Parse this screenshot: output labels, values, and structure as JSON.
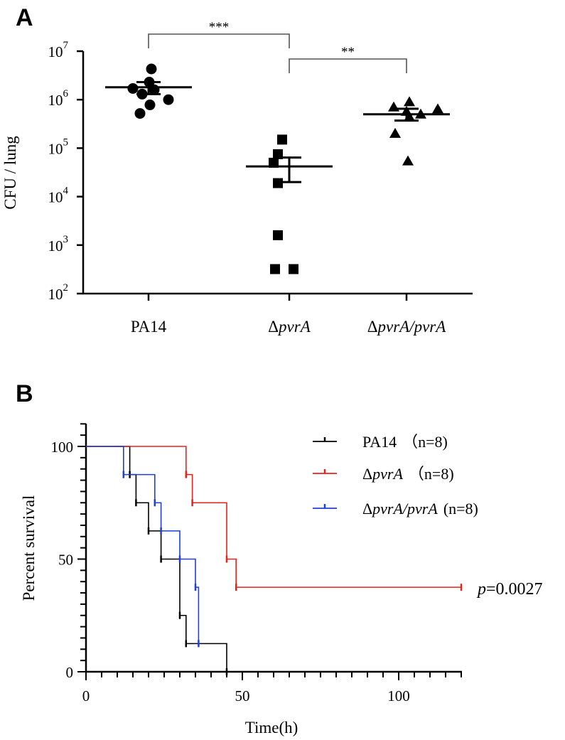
{
  "panels": {
    "a_letter": "A",
    "b_letter": "B"
  },
  "chart_data": [
    {
      "type": "scatter",
      "ylabel": "CFU / lung",
      "yscale": "log",
      "ylim": [
        100,
        10000000
      ],
      "ytick_exponents": [
        "2",
        "3",
        "4",
        "5",
        "6",
        "7"
      ],
      "ytick_base": "10",
      "categories": [
        {
          "prefix": "",
          "italic": "",
          "suffix": "PA14"
        },
        {
          "prefix": "Δ",
          "italic": "pvrA",
          "suffix": ""
        },
        {
          "prefix": "Δ",
          "italic": "pvrA/pvrA",
          "suffix": ""
        }
      ],
      "series": [
        {
          "marker": "circle",
          "values": [
            4300000,
            2300000,
            1700000,
            1600000,
            1300000,
            1000000,
            780000,
            520000
          ],
          "mean": 1800000,
          "sem": [
            1300000,
            2300000
          ]
        },
        {
          "marker": "square",
          "values": [
            150000,
            75000,
            50000,
            19000,
            1600,
            320,
            320
          ],
          "mean": 42000,
          "sem": [
            20000,
            64000
          ]
        },
        {
          "marker": "triangle",
          "values": [
            900000,
            700000,
            640000,
            570000,
            500000,
            440000,
            200000,
            54000
          ],
          "mean": 500000,
          "sem": [
            370000,
            650000
          ]
        }
      ],
      "significance": [
        {
          "from": 0,
          "to": 1,
          "label": "***"
        },
        {
          "from": 1,
          "to": 2,
          "label": "**"
        }
      ]
    },
    {
      "type": "line",
      "subtype": "kaplan-meier",
      "xlabel": "Time(h)",
      "ylabel": "Percent survival",
      "xlim": [
        0,
        120
      ],
      "ylim": [
        0,
        100
      ],
      "xticks": [
        "0",
        "50",
        "100"
      ],
      "yticks": [
        "0",
        "50",
        "100"
      ],
      "legend_position": "top-right",
      "series": [
        {
          "color": "#000000",
          "name_prefix": "",
          "name_italic": "",
          "name_suffix": "PA14",
          "n_label": "（n=8)",
          "x": [
            0,
            12,
            14,
            16,
            20,
            24,
            30,
            32,
            45
          ],
          "y": [
            100,
            100,
            87.5,
            75,
            62.5,
            50,
            25,
            12.5,
            0
          ],
          "censored_x": [
            14,
            16,
            20,
            24,
            30,
            32,
            45
          ]
        },
        {
          "color": "#e8221b",
          "name_prefix": "Δ",
          "name_italic": "pvrA",
          "name_suffix": "",
          "n_label": "（n=8)",
          "x": [
            0,
            32,
            34,
            45,
            48,
            120
          ],
          "y": [
            100,
            87.5,
            75,
            50,
            37.5,
            37.5
          ],
          "censored_x": [
            32,
            34,
            45,
            48,
            120
          ]
        },
        {
          "color": "#1f3fd6",
          "name_prefix": "Δ",
          "name_italic": "pvrA/pvrA",
          "name_suffix": "",
          "n_label": "(n=8)",
          "x": [
            0,
            12,
            22,
            24,
            30,
            35,
            36
          ],
          "y": [
            100,
            87.5,
            75,
            62.5,
            50,
            37.5,
            12.5
          ],
          "censored_x": [
            12,
            22,
            24,
            30,
            35,
            36
          ]
        }
      ],
      "annotation": {
        "italic": "p",
        "text": "=0.0027"
      }
    }
  ]
}
